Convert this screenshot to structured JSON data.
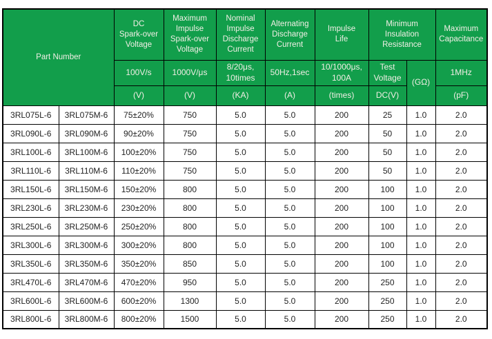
{
  "colors": {
    "header_green": "#129e4b",
    "header_text": "#f2efe6",
    "border": "#000000",
    "body_text": "#1f1f1f"
  },
  "header": {
    "part_number": "Part Number",
    "dc": {
      "title": "DC\nSpark-over\nVoltage",
      "condition": "100V/s",
      "unit": "(V)"
    },
    "max_impulse": {
      "title": "Maximum\nImpulse\nSpark-over\nVoltage",
      "condition": "1000V/μs",
      "unit": "(V)"
    },
    "nominal_discharge": {
      "title": "Nominal\nImpulse\nDischarge\nCurrent",
      "condition": "8/20μs,\n10times",
      "unit": "(KA)"
    },
    "alternating_discharge": {
      "title": "Alternating\nDischarge\nCurrent",
      "condition": "50Hz,1sec",
      "unit": "(A)"
    },
    "impulse_life": {
      "title": "Impulse\nLife",
      "condition": "10/1000μs,\n100A",
      "unit": "(times)"
    },
    "insulation": {
      "title": "Minimum\nInsulation\nResistance",
      "test_voltage": "Test\nVoltage",
      "test_voltage_unit": "DC(V)",
      "gohm_unit": "(GΩ)"
    },
    "max_capacitance": {
      "title": "Maximum\nCapacitance",
      "condition": "1MHz",
      "unit": "(pF)"
    }
  },
  "column_ids": [
    "part-number-l",
    "part-number-m",
    "dc-sparkover-v",
    "max-impulse-v",
    "nominal-discharge-ka",
    "alternating-discharge-a",
    "impulse-life-times",
    "test-voltage-dc-v",
    "insulation-gohm",
    "capacitance-pf"
  ],
  "rows": [
    [
      "3RL075L-6",
      "3RL075M-6",
      "75±20%",
      "750",
      "5.0",
      "5.0",
      "200",
      "25",
      "1.0",
      "2.0"
    ],
    [
      "3RL090L-6",
      "3RL090M-6",
      "90±20%",
      "750",
      "5.0",
      "5.0",
      "200",
      "50",
      "1.0",
      "2.0"
    ],
    [
      "3RL100L-6",
      "3RL100M-6",
      "100±20%",
      "750",
      "5.0",
      "5.0",
      "200",
      "50",
      "1.0",
      "2.0"
    ],
    [
      "3RL110L-6",
      "3RL110M-6",
      "110±20%",
      "750",
      "5.0",
      "5.0",
      "200",
      "50",
      "1.0",
      "2.0"
    ],
    [
      "3RL150L-6",
      "3RL150M-6",
      "150±20%",
      "800",
      "5.0",
      "5.0",
      "200",
      "100",
      "1.0",
      "2.0"
    ],
    [
      "3RL230L-6",
      "3RL230M-6",
      "230±20%",
      "800",
      "5.0",
      "5.0",
      "200",
      "100",
      "1.0",
      "2.0"
    ],
    [
      "3RL250L-6",
      "3RL250M-6",
      "250±20%",
      "800",
      "5.0",
      "5.0",
      "200",
      "100",
      "1.0",
      "2.0"
    ],
    [
      "3RL300L-6",
      "3RL300M-6",
      "300±20%",
      "800",
      "5.0",
      "5.0",
      "200",
      "100",
      "1.0",
      "2.0"
    ],
    [
      "3RL350L-6",
      "3RL350M-6",
      "350±20%",
      "850",
      "5.0",
      "5.0",
      "200",
      "100",
      "1.0",
      "2.0"
    ],
    [
      "3RL470L-6",
      "3RL470M-6",
      "470±20%",
      "950",
      "5.0",
      "5.0",
      "200",
      "250",
      "1.0",
      "2.0"
    ],
    [
      "3RL600L-6",
      "3RL600M-6",
      "600±20%",
      "1300",
      "5.0",
      "5.0",
      "200",
      "250",
      "1.0",
      "2.0"
    ],
    [
      "3RL800L-6",
      "3RL800M-6",
      "800±20%",
      "1500",
      "5.0",
      "5.0",
      "200",
      "250",
      "1.0",
      "2.0"
    ]
  ]
}
